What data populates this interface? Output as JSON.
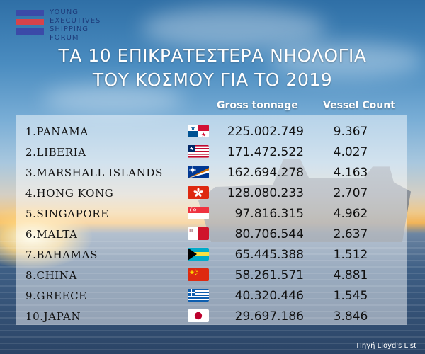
{
  "logo": {
    "lines": [
      "YOUNG",
      "EXECUTIVES",
      "SHIPPING",
      "FORUM"
    ],
    "bar_colors": [
      "#3b4aa8",
      "#d7434a",
      "#3b4aa8"
    ]
  },
  "title": {
    "line1": "ΤΑ 10 ΕΠΙΚΡΑΤΕΣΤΕΡΑ ΝΗΟΛΟΓΙΑ",
    "line2": "ΤΟΥ ΚΟΣΜΟΥ ΓΙΑ ΤΟ 2019"
  },
  "columns": {
    "tonnage": "Gross tonnage",
    "vessels": "Vessel Count"
  },
  "rows": [
    {
      "name": "1.PANAMA",
      "flag": "panama-flag",
      "tonnage": "225.002.749",
      "vessels": "9.367"
    },
    {
      "name": "2.LIBERIA",
      "flag": "liberia-flag",
      "tonnage": "171.472.522",
      "vessels": "4.027"
    },
    {
      "name": "3.MARSHALL ISLANDS",
      "flag": "marshall-islands-flag",
      "tonnage": "162.694.278",
      "vessels": "4.163"
    },
    {
      "name": "4.HONG KONG",
      "flag": "hong-kong-flag",
      "tonnage": "128.080.233",
      "vessels": "2.707"
    },
    {
      "name": "5.SINGAPORE",
      "flag": "singapore-flag",
      "tonnage": "97.816.315",
      "vessels": "4.962"
    },
    {
      "name": "6.MALTA",
      "flag": "malta-flag",
      "tonnage": "80.706.544",
      "vessels": "2.637"
    },
    {
      "name": "7.BAHAMAS",
      "flag": "bahamas-flag",
      "tonnage": "65.445.388",
      "vessels": "1.512"
    },
    {
      "name": "8.CHINA",
      "flag": "china-flag",
      "tonnage": "58.261.571",
      "vessels": "4.881"
    },
    {
      "name": "9.GREECE",
      "flag": "greece-flag",
      "tonnage": "40.320.446",
      "vessels": "1.545"
    },
    {
      "name": "10.JAPAN",
      "flag": "japan-flag",
      "tonnage": "29.697.186",
      "vessels": "3.846"
    }
  ],
  "source": "Πηγή Lloyd's List"
}
